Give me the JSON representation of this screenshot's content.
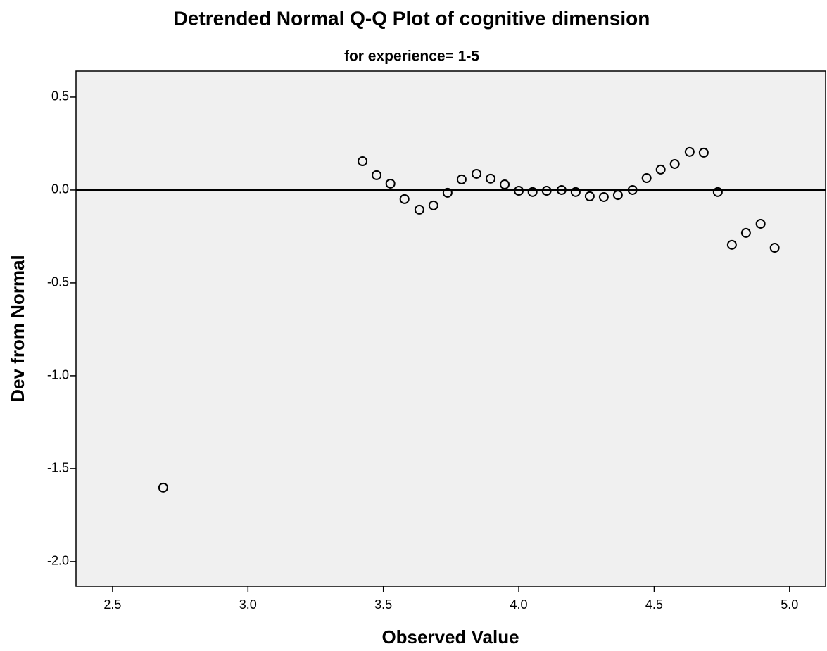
{
  "chart_data": {
    "type": "scatter",
    "title": "Detrended Normal Q-Q Plot of cognitive dimension",
    "subtitle": "for experience= 1-5",
    "x_label": "Observed Value",
    "y_label": "Dev from Normal",
    "x": [
      2.687,
      3.423,
      3.475,
      3.526,
      3.578,
      3.633,
      3.685,
      3.737,
      3.789,
      3.844,
      3.896,
      3.948,
      4.0,
      4.051,
      4.103,
      4.158,
      4.21,
      4.262,
      4.314,
      4.366,
      4.42,
      4.472,
      4.524,
      4.576,
      4.631,
      4.683,
      4.735,
      4.787,
      4.839,
      4.893,
      4.945
    ],
    "values": [
      -1.602,
      0.155,
      0.08,
      0.034,
      -0.049,
      -0.106,
      -0.083,
      -0.015,
      0.057,
      0.087,
      0.061,
      0.03,
      -0.004,
      -0.011,
      -0.004,
      0.0,
      -0.011,
      -0.034,
      -0.038,
      -0.027,
      0.0,
      0.064,
      0.11,
      0.14,
      0.205,
      0.201,
      -0.011,
      -0.295,
      -0.231,
      -0.182,
      -0.311
    ],
    "color": "#000000",
    "xlim": [
      2.365,
      5.133
    ],
    "ylim": [
      -2.133,
      0.64
    ],
    "xticks": [
      {
        "value": 2.5,
        "label": "2.5"
      },
      {
        "value": 3,
        "label": "3.0"
      },
      {
        "value": 3.5,
        "label": "3.5"
      },
      {
        "value": 4,
        "label": "4.0"
      },
      {
        "value": 4.5,
        "label": "4.5"
      },
      {
        "value": 5,
        "label": "5.0"
      }
    ],
    "yticks": [
      {
        "value": 0.5,
        "label": "0.5"
      },
      {
        "value": 0,
        "label": "0.0"
      },
      {
        "value": -0.5,
        "label": "-0.5"
      },
      {
        "value": -1,
        "label": "-1.0"
      },
      {
        "value": -1.5,
        "label": "-1.5"
      },
      {
        "value": -2,
        "label": "-2.0"
      }
    ]
  }
}
